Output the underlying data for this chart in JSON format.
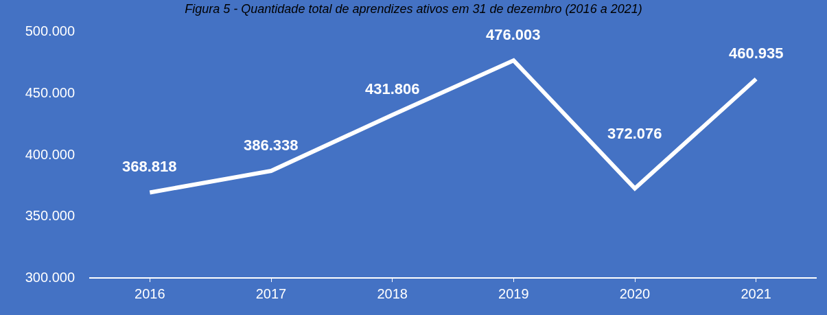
{
  "chart_data": {
    "type": "line",
    "title": "Figura 5 - Quantidade total de aprendizes ativos em 31 de dezembro (2016 a 2021)",
    "categories": [
      "2016",
      "2017",
      "2018",
      "2019",
      "2020",
      "2021"
    ],
    "series": [
      {
        "color": "#ffffff",
        "values": [
          368818,
          386338,
          431806,
          476003,
          372076,
          460935
        ],
        "value_labels": [
          "368.818",
          "386.338",
          "431.806",
          "476.003",
          "372.076",
          "460.935"
        ]
      }
    ],
    "ylim": [
      300000,
      500000
    ],
    "yticks": [
      {
        "value": 300000,
        "label": "300.000"
      },
      {
        "value": 350000,
        "label": "350.000"
      },
      {
        "value": 400000,
        "label": "400.000"
      },
      {
        "value": 450000,
        "label": "450.000"
      },
      {
        "value": 500000,
        "label": "500.000"
      }
    ],
    "grid": false,
    "legend": false,
    "marker": "none",
    "line_style": "solid"
  }
}
